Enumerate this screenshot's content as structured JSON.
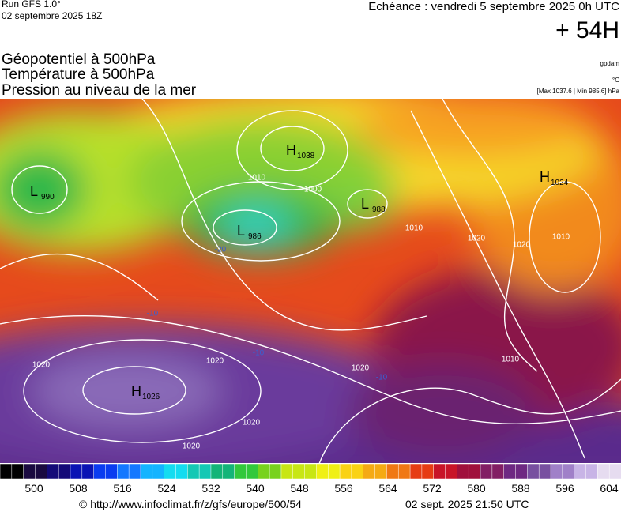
{
  "header": {
    "run": "Run GFS 1.0°",
    "run_date": "02 septembre 2025 18Z",
    "echeance": "Echéance : vendredi 5 septembre 2025 0h UTC",
    "lead": "+ 54H"
  },
  "titles": [
    "Géopotentiel à 500hPa",
    "Température à 500hPa",
    "Pression au niveau de la mer"
  ],
  "units": {
    "geopotential": "gpdam",
    "temperature": "°C",
    "pressure": "[Max 1037.6 | Min 985.6] hPa"
  },
  "centers": [
    {
      "letter": "L",
      "value": "990"
    },
    {
      "letter": "H",
      "value": "1038"
    },
    {
      "letter": "L",
      "value": "988"
    },
    {
      "letter": "L",
      "value": "986"
    },
    {
      "letter": "H",
      "value": "1024"
    },
    {
      "letter": "H",
      "value": "1026"
    }
  ],
  "isobar_labels": [
    "1010",
    "1000",
    "1010",
    "1020",
    "1020",
    "1010",
    "1020",
    "1020",
    "1020",
    "1020",
    "1020",
    "1010"
  ],
  "temperature_labels": [
    "-10",
    "-10",
    "-10",
    "-20"
  ],
  "colorbar": {
    "labels": [
      "500",
      "508",
      "516",
      "524",
      "532",
      "540",
      "548",
      "556",
      "564",
      "572",
      "580",
      "588",
      "596",
      "604"
    ]
  },
  "footer": {
    "url": "© http://www.infoclimat.fr/z/gfs/europe/500/54",
    "date": "02 sept. 2025 21:50 UTC"
  }
}
